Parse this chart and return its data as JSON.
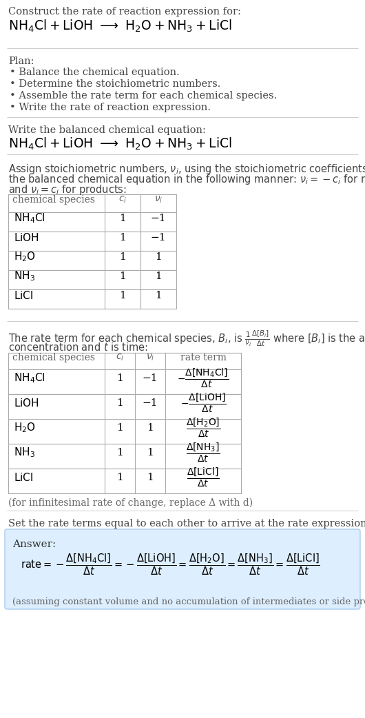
{
  "bg_color": "#ffffff",
  "text_color": "#000000",
  "gray_text": "#555555",
  "table_border": "#aaaaaa",
  "sep_line_color": "#cccccc",
  "answer_bg": "#ddeeff",
  "answer_border": "#aaccee",
  "plan_items": [
    "• Balance the chemical equation.",
    "• Determine the stoichiometric numbers.",
    "• Assemble the rate term for each chemical species.",
    "• Write the rate of reaction expression."
  ],
  "table1_rows": [
    [
      "NH_4Cl",
      "1",
      "−1"
    ],
    [
      "LiOH",
      "1",
      "−1"
    ],
    [
      "H_2O",
      "1",
      "1"
    ],
    [
      "NH_3",
      "1",
      "1"
    ],
    [
      "LiCl",
      "1",
      "1"
    ]
  ],
  "table2_rows": [
    [
      "NH_4Cl",
      "1",
      "−1",
      "neg_NH4Cl"
    ],
    [
      "LiOH",
      "1",
      "−1",
      "neg_LiOH"
    ],
    [
      "H_2O",
      "1",
      "1",
      "pos_H2O"
    ],
    [
      "NH_3",
      "1",
      "1",
      "pos_NH3"
    ],
    [
      "LiCl",
      "1",
      "1",
      "pos_LiCl"
    ]
  ],
  "infinitesimal_note": "(for infinitesimal rate of change, replace Δ with d)",
  "set_equal_text": "Set the rate terms equal to each other to arrive at the rate expression:",
  "answer_label": "Answer:",
  "assuming_note": "(assuming constant volume and no accumulation of intermediates or side products)"
}
